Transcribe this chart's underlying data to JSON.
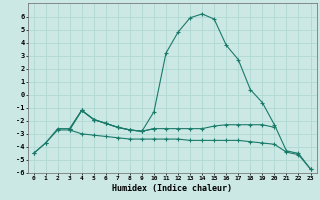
{
  "background_color": "#cce8e4",
  "grid_color": "#b0d8d4",
  "line_color": "#1a7a6a",
  "xlabel": "Humidex (Indice chaleur)",
  "xlim": [
    -0.5,
    23.5
  ],
  "ylim": [
    -6,
    7
  ],
  "xtick_labels": [
    "0",
    "1",
    "2",
    "3",
    "4",
    "5",
    "6",
    "7",
    "8",
    "9",
    "10",
    "11",
    "12",
    "13",
    "14",
    "15",
    "16",
    "17",
    "18",
    "19",
    "20",
    "21",
    "22",
    "23"
  ],
  "ytick_vals": [
    -6,
    -5,
    -4,
    -3,
    -2,
    -1,
    0,
    1,
    2,
    3,
    4,
    5,
    6
  ],
  "series1_x": [
    0,
    1,
    2,
    3,
    4,
    5,
    6,
    7,
    8,
    9,
    10,
    11,
    12,
    13,
    14,
    15,
    16,
    17,
    18,
    19,
    20,
    21,
    22,
    23
  ],
  "series1_y": [
    -4.5,
    -3.7,
    -2.6,
    -2.6,
    -1.2,
    -1.9,
    -2.2,
    -2.5,
    -2.7,
    -2.8,
    -1.3,
    3.2,
    4.8,
    5.9,
    6.2,
    5.8,
    3.8,
    2.7,
    0.4,
    -0.6,
    -2.3,
    -4.3,
    -4.5,
    -5.7
  ],
  "series2_x": [
    0,
    1,
    2,
    3,
    4,
    5,
    6,
    7,
    8,
    9,
    10,
    11,
    12,
    13,
    14,
    15,
    16,
    17,
    18,
    19,
    20,
    21,
    22,
    23
  ],
  "series2_y": [
    -4.5,
    -3.7,
    -2.7,
    -2.7,
    -3.0,
    -3.1,
    -3.2,
    -3.3,
    -3.4,
    -3.4,
    -3.4,
    -3.4,
    -3.4,
    -3.5,
    -3.5,
    -3.5,
    -3.5,
    -3.5,
    -3.6,
    -3.7,
    -3.8,
    -4.4,
    -4.6,
    -5.7
  ],
  "series3_x": [
    3,
    4,
    5,
    6,
    7,
    8,
    9,
    10,
    11,
    12,
    13,
    14,
    15,
    16,
    17,
    18,
    19,
    20
  ],
  "series3_y": [
    -2.6,
    -1.2,
    -1.9,
    -2.2,
    -2.5,
    -2.7,
    -2.8,
    -2.6,
    -2.6,
    -2.6,
    -2.6,
    -2.6,
    -2.4,
    -2.3,
    -2.3,
    -2.3,
    -2.3,
    -2.5
  ],
  "series4_x": [
    3,
    4,
    5,
    6,
    7,
    8,
    9,
    10
  ],
  "series4_y": [
    -2.7,
    -1.2,
    -1.9,
    -2.2,
    -2.5,
    -2.7,
    -2.8,
    -2.6
  ]
}
